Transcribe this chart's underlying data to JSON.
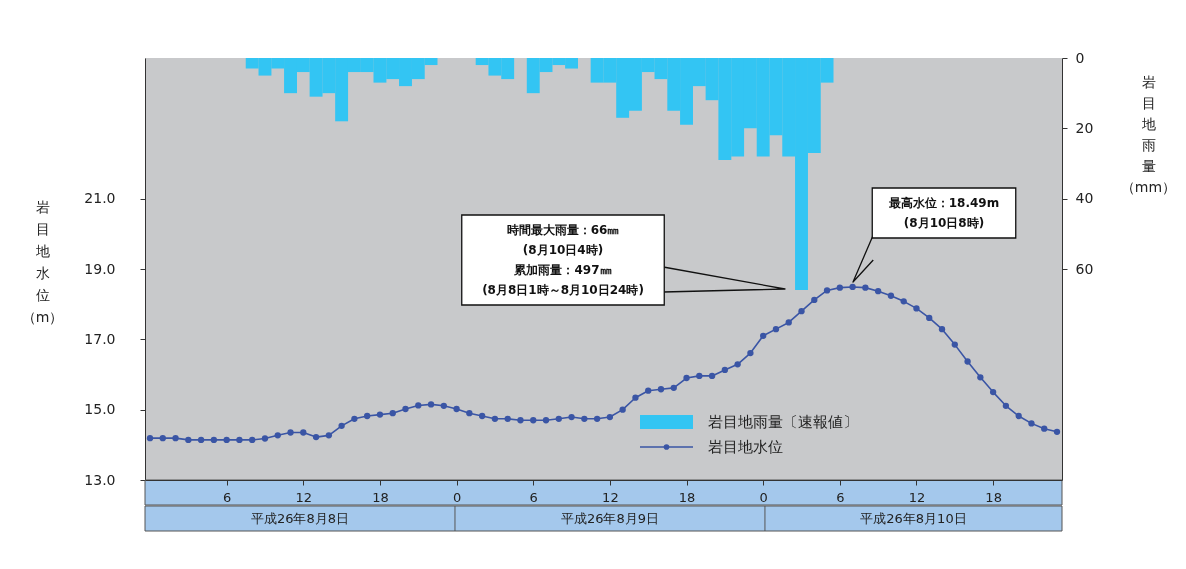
{
  "chart_data": {
    "type": "bar",
    "ylabel": "岩目地水位（m）",
    "y2label": "岩目地雨量（mm）",
    "categories": [
      null,
      null,
      null,
      null,
      null,
      null,
      "6",
      null,
      null,
      null,
      null,
      null,
      "12",
      null,
      null,
      null,
      null,
      null,
      "18",
      null,
      null,
      null,
      null,
      null,
      "0",
      null,
      null,
      null,
      null,
      null,
      "6",
      null,
      null,
      null,
      null,
      null,
      "12",
      null,
      null,
      null,
      null,
      null,
      "18",
      null,
      null,
      null,
      null,
      null,
      "0",
      null,
      null,
      null,
      null,
      null,
      "6",
      null,
      null,
      null,
      null,
      null,
      "12",
      null,
      null,
      null,
      null,
      null,
      "18",
      null,
      null,
      null,
      null,
      null
    ],
    "ylim": [
      13,
      25
    ],
    "yticks": [
      {
        "value": 13,
        "label": "13.0"
      },
      {
        "value": 15,
        "label": "15.0"
      },
      {
        "value": 17,
        "label": "17.0"
      },
      {
        "value": 19,
        "label": "19.0"
      },
      {
        "value": 21,
        "label": "21.0"
      }
    ],
    "y2lim": [
      120,
      0
    ],
    "y2ticks": [
      0,
      20,
      40,
      60
    ],
    "grid": false,
    "legend": "bottom right",
    "marker": "circle",
    "line_style": "solid",
    "series": [
      {
        "name": "岩目地雨量〔速報値〕",
        "axis": "y2",
        "color": "#33c5f3",
        "values": [
          null,
          null,
          null,
          null,
          null,
          null,
          null,
          null,
          3,
          5,
          3,
          10,
          4,
          11,
          10,
          18,
          4,
          4,
          7,
          6,
          8,
          6,
          2,
          null,
          null,
          null,
          2,
          5,
          6,
          null,
          10,
          4,
          2,
          3,
          null,
          7,
          7,
          17,
          15,
          4,
          6,
          15,
          19,
          8,
          12,
          29,
          28,
          20,
          28,
          22,
          28,
          66,
          27,
          7,
          null,
          null,
          null,
          null,
          null,
          null,
          null,
          null,
          null,
          null,
          null,
          null,
          null,
          null,
          null,
          null,
          null,
          null
        ]
      },
      {
        "name": "岩目地水位",
        "type": "line",
        "color": "#3a55a5",
        "values": [
          14.19,
          14.19,
          14.19,
          14.14,
          14.14,
          14.14,
          14.14,
          14.14,
          14.14,
          14.18,
          14.27,
          14.35,
          14.35,
          14.22,
          14.27,
          14.54,
          14.74,
          14.82,
          14.86,
          14.9,
          15.02,
          15.12,
          15.15,
          15.11,
          15.02,
          14.9,
          14.82,
          14.74,
          14.74,
          14.7,
          14.7,
          14.7,
          14.74,
          14.79,
          14.74,
          14.74,
          14.79,
          15.0,
          15.34,
          15.54,
          15.58,
          15.62,
          15.9,
          15.96,
          15.96,
          16.13,
          16.29,
          16.61,
          17.1,
          17.29,
          17.48,
          17.8,
          18.12,
          18.39,
          18.47,
          18.49,
          18.47,
          18.37,
          18.24,
          18.08,
          17.88,
          17.61,
          17.29,
          16.85,
          16.37,
          15.92,
          15.5,
          15.11,
          14.82,
          14.61,
          14.46,
          14.37
        ]
      }
    ],
    "annotations": [
      "時間最大雨量：66㎜\n(8月10日4時)\n累加雨量：497㎜\n(8月8日1時～8月10日24時)",
      "最高水位：18.49m\n(8月10日8時)",
      "平成26年8月8日",
      "平成26年8月9日",
      "平成26年8月10日"
    ]
  }
}
